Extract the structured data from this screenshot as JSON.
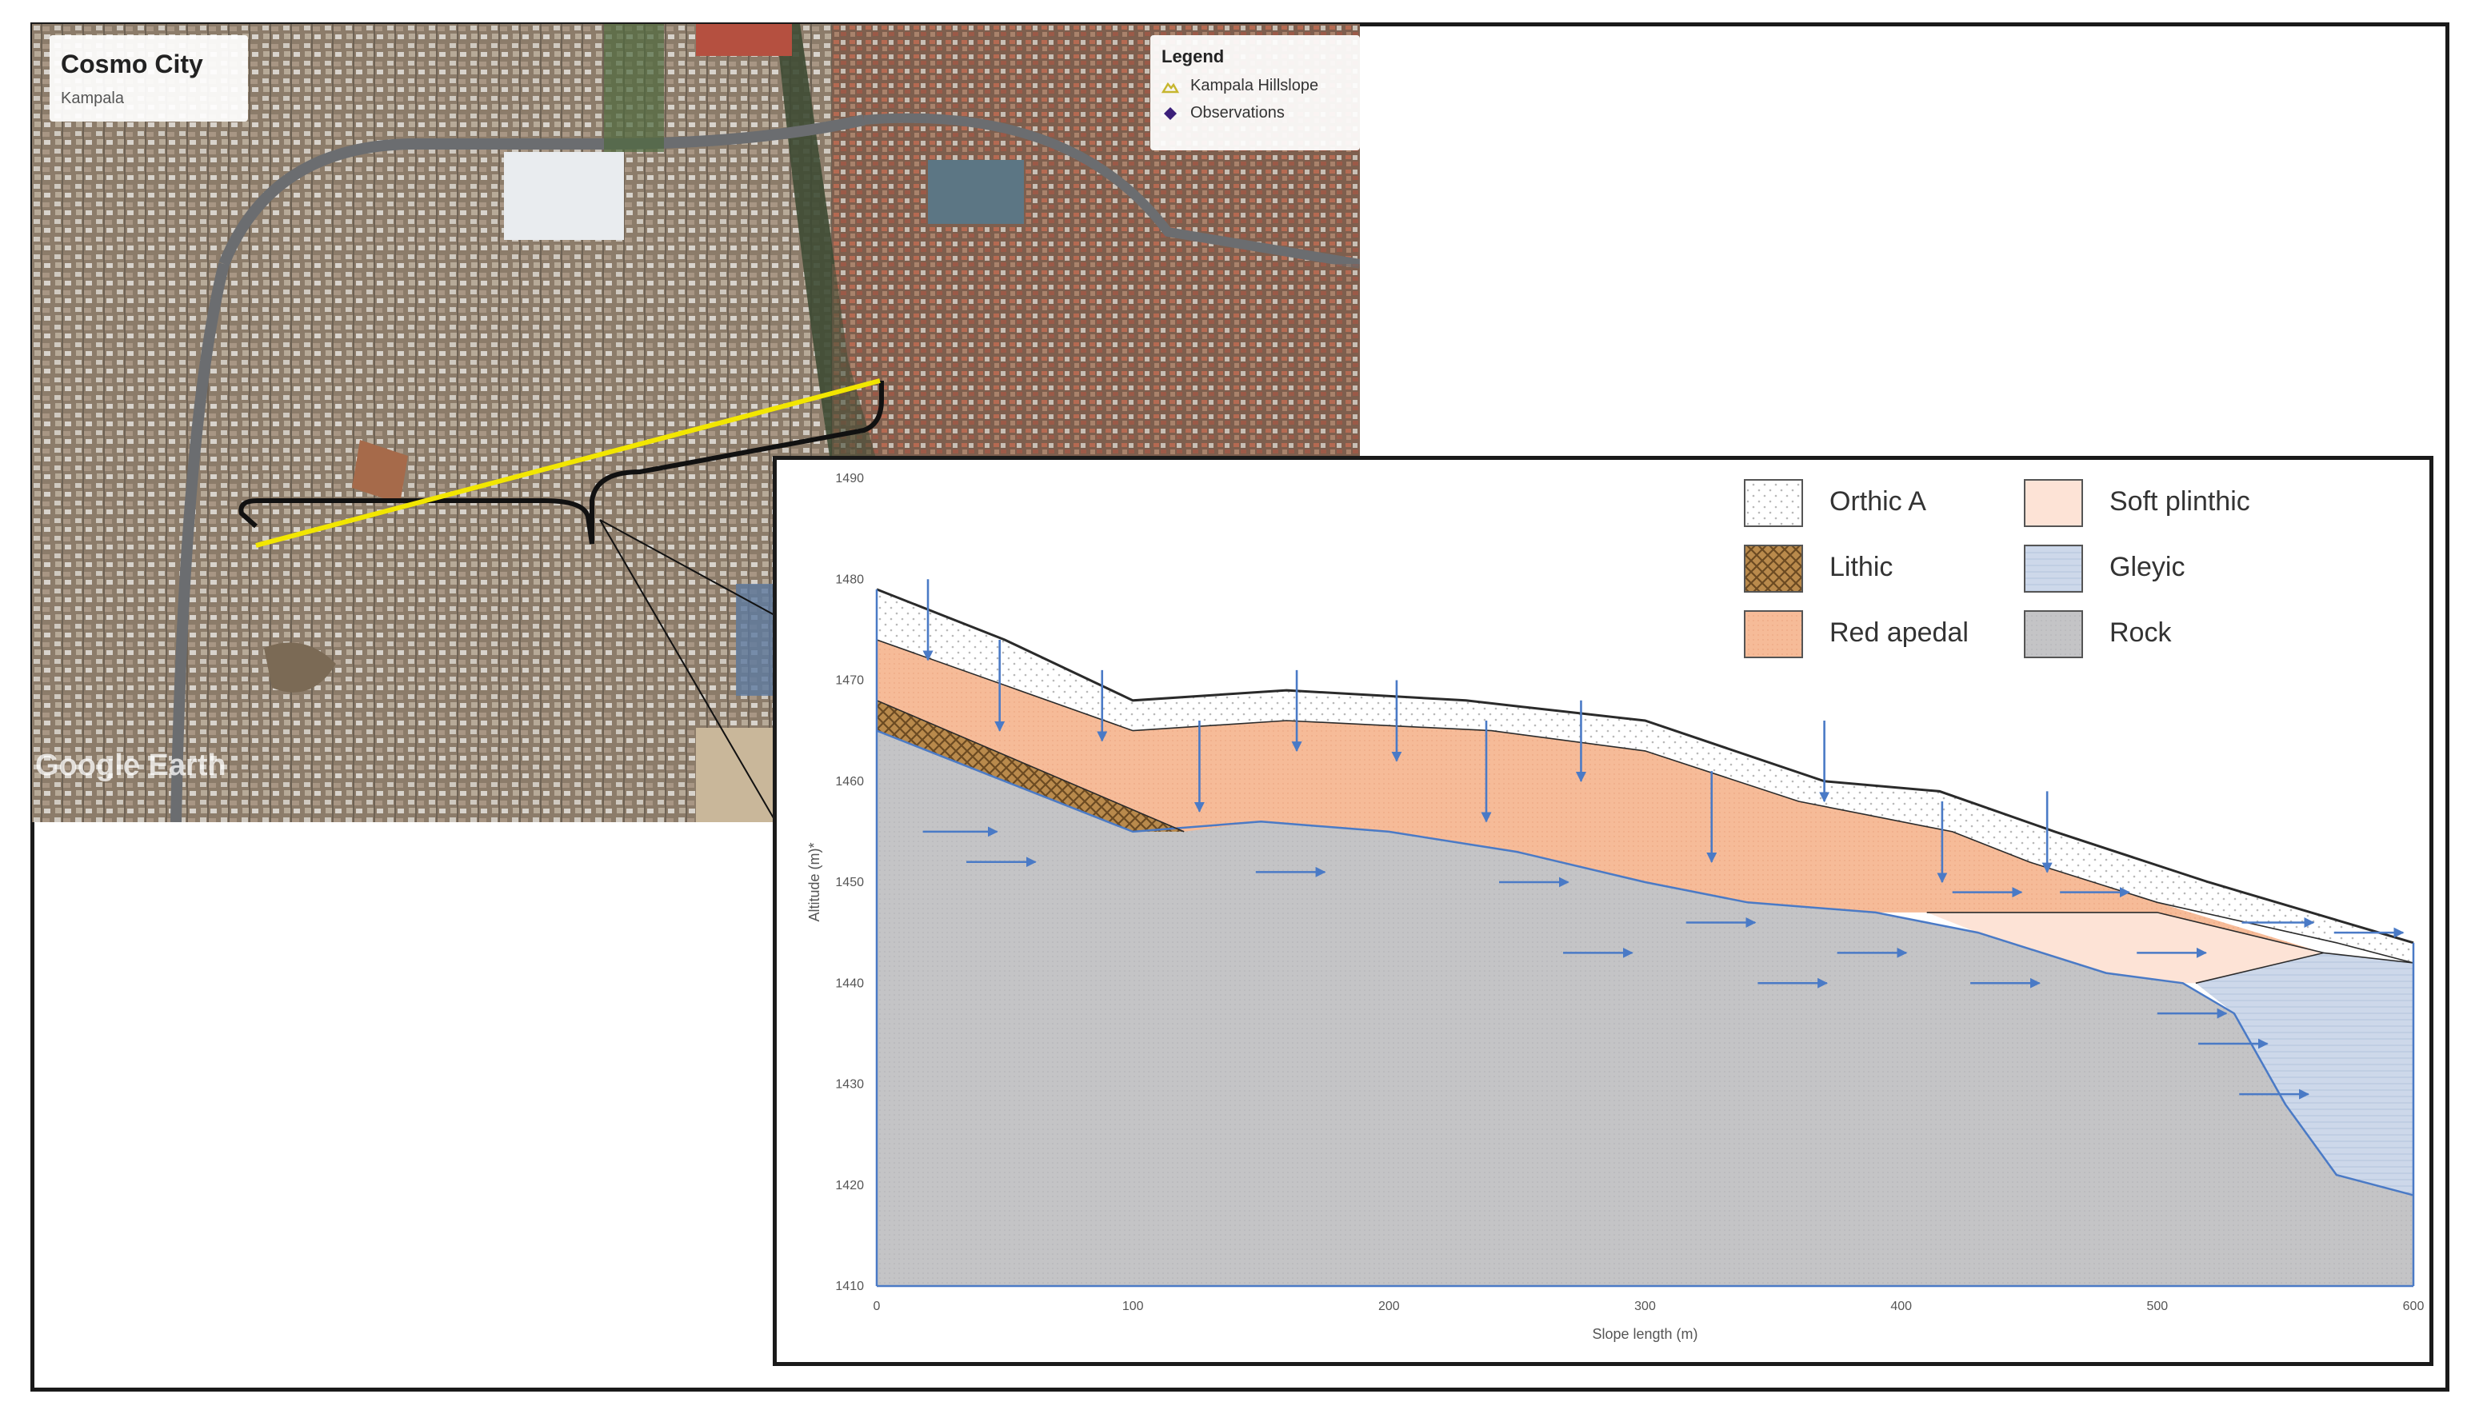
{
  "map": {
    "title": "Cosmo City",
    "subtitle": "Kampala",
    "legend": {
      "title": "Legend",
      "items": [
        {
          "label": "Kampala Hillslope",
          "icon": "hillslope-icon",
          "color": "#d8c63a"
        },
        {
          "label": "Observations",
          "icon": "diamond-icon",
          "color": "#3b1f7a"
        }
      ]
    },
    "watermark": "Google Earth",
    "transect_color": "#f2e600"
  },
  "chart_data": {
    "type": "area",
    "xlabel": "Slope length (m)",
    "ylabel": "Altitude (m)*",
    "xlim": [
      0,
      600
    ],
    "ylim": [
      1410,
      1490
    ],
    "x_ticks": [
      0,
      100,
      200,
      300,
      400,
      500,
      600
    ],
    "y_ticks": [
      1410,
      1420,
      1430,
      1440,
      1450,
      1460,
      1470,
      1480,
      1490
    ],
    "legend_placement": "top-right",
    "layers": [
      {
        "name": "Orthic A",
        "color": "#ffffff",
        "pattern": "dots"
      },
      {
        "name": "Soft plinthic",
        "color": "#fde3d6",
        "pattern": "none"
      },
      {
        "name": "Lithic",
        "color": "#b98a4c",
        "pattern": "crosshatch"
      },
      {
        "name": "Gleyic",
        "color": "#cdd8ea",
        "pattern": "lines"
      },
      {
        "name": "Red apedal",
        "color": "#f6bb98",
        "pattern": "fine"
      },
      {
        "name": "Rock",
        "color": "#c4c4c6",
        "pattern": "fine"
      }
    ],
    "surface": [
      [
        0,
        1479
      ],
      [
        50,
        1474
      ],
      [
        100,
        1468
      ],
      [
        160,
        1469
      ],
      [
        230,
        1468
      ],
      [
        300,
        1466
      ],
      [
        370,
        1460
      ],
      [
        415,
        1459
      ],
      [
        460,
        1455
      ],
      [
        520,
        1450
      ],
      [
        600,
        1444
      ]
    ],
    "orthic_base": [
      [
        0,
        1474
      ],
      [
        100,
        1465
      ],
      [
        160,
        1466
      ],
      [
        240,
        1465
      ],
      [
        300,
        1463
      ],
      [
        360,
        1458
      ],
      [
        420,
        1455
      ],
      [
        450,
        1452
      ],
      [
        500,
        1448
      ],
      [
        570,
        1444
      ],
      [
        600,
        1442
      ]
    ],
    "red_apedal_base_left": [
      [
        0,
        1468
      ],
      [
        120,
        1455
      ]
    ],
    "lithic_base": [
      [
        0,
        1465
      ],
      [
        50,
        1460
      ],
      [
        100,
        1455
      ],
      [
        120,
        1455
      ]
    ],
    "rock_top": [
      [
        0,
        1465
      ],
      [
        50,
        1460
      ],
      [
        100,
        1455
      ],
      [
        150,
        1456
      ],
      [
        200,
        1455
      ],
      [
        250,
        1453
      ],
      [
        300,
        1450
      ],
      [
        340,
        1448
      ],
      [
        390,
        1447
      ],
      [
        430,
        1445
      ],
      [
        480,
        1441
      ],
      [
        510,
        1440
      ],
      [
        530,
        1437
      ],
      [
        550,
        1428
      ],
      [
        570,
        1421
      ],
      [
        600,
        1419
      ]
    ],
    "plinthic_top": [
      [
        410,
        1447
      ],
      [
        500,
        1447
      ],
      [
        565,
        1443
      ]
    ],
    "gleyic_top": [
      [
        515,
        1440
      ],
      [
        565,
        1443
      ],
      [
        600,
        1442
      ]
    ],
    "flow_arrows_down": [
      [
        20,
        1480,
        1472
      ],
      [
        48,
        1474,
        1465
      ],
      [
        88,
        1471,
        1464
      ],
      [
        126,
        1466,
        1457
      ],
      [
        164,
        1471,
        1463
      ],
      [
        203,
        1470,
        1462
      ],
      [
        238,
        1466,
        1456
      ],
      [
        275,
        1468,
        1460
      ],
      [
        326,
        1461,
        1452
      ],
      [
        370,
        1466,
        1458
      ],
      [
        416,
        1458,
        1450
      ],
      [
        457,
        1459,
        1451
      ]
    ],
    "flow_arrows_right": [
      [
        18,
        1455,
        47
      ],
      [
        35,
        1452,
        62
      ],
      [
        148,
        1451,
        175
      ],
      [
        243,
        1450,
        270
      ],
      [
        268,
        1443,
        295
      ],
      [
        316,
        1446,
        343
      ],
      [
        344,
        1440,
        371
      ],
      [
        375,
        1443,
        402
      ],
      [
        420,
        1449,
        447
      ],
      [
        427,
        1440,
        454
      ],
      [
        462,
        1449,
        489
      ],
      [
        492,
        1443,
        519
      ],
      [
        500,
        1437,
        527
      ],
      [
        516,
        1434,
        543
      ],
      [
        532,
        1429,
        559
      ],
      [
        533,
        1446,
        561
      ],
      [
        569,
        1445,
        596
      ]
    ]
  }
}
